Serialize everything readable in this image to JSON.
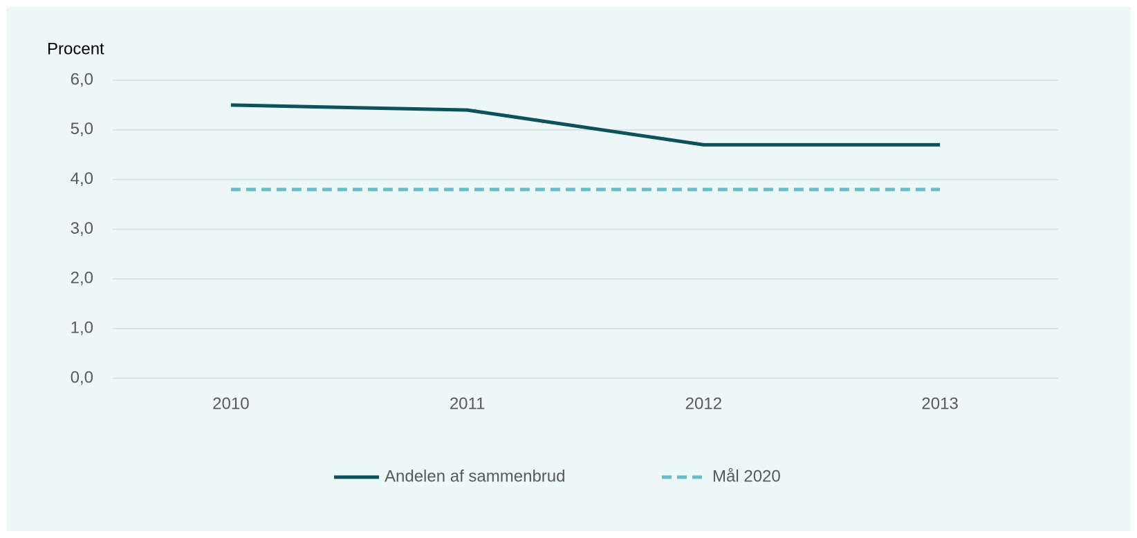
{
  "chart_data": {
    "type": "line",
    "y_label": "Procent",
    "categories": [
      "2010",
      "2011",
      "2012",
      "2013"
    ],
    "series": [
      {
        "name": "Andelen af sammenbrud",
        "color": "#0b525b",
        "dash": false,
        "values": [
          5.5,
          5.4,
          4.7,
          4.7
        ]
      },
      {
        "name": "Mål 2020",
        "color": "#6cbcc8",
        "dash": true,
        "values": [
          3.8,
          3.8,
          3.8,
          3.8
        ]
      }
    ],
    "ylim": [
      0,
      6
    ],
    "yticks": [
      {
        "value": 0,
        "label": "0,0"
      },
      {
        "value": 1,
        "label": "1,0"
      },
      {
        "value": 2,
        "label": "2,0"
      },
      {
        "value": 3,
        "label": "3,0"
      },
      {
        "value": 4,
        "label": "4,0"
      },
      {
        "value": 5,
        "label": "5,0"
      },
      {
        "value": 6,
        "label": "6,0"
      }
    ],
    "grid": true,
    "legend": "bottom"
  }
}
